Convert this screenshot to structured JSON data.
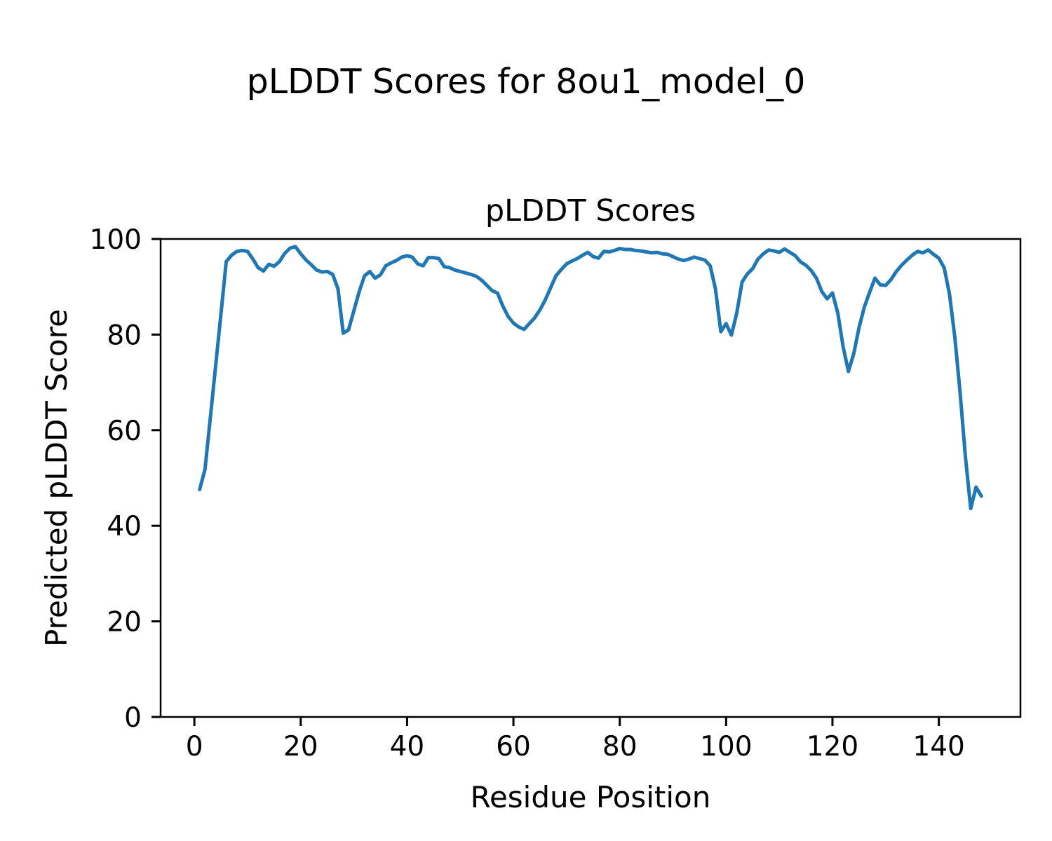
{
  "figure": {
    "suptitle": "pLDDT Scores for 8ou1_model_0",
    "background_color": "#ffffff",
    "text_color": "#000000"
  },
  "axes": {
    "title": "pLDDT Scores",
    "xlabel": "Residue Position",
    "ylabel": "Predicted pLDDT Score",
    "spine_color": "#000000"
  },
  "chart_data": {
    "type": "line",
    "title": "pLDDT Scores",
    "xlabel": "Residue Position",
    "ylabel": "Predicted pLDDT Score",
    "series_name": "pLDDT per residue",
    "line_color": "#1f77b4",
    "grid": false,
    "legend_position": "none",
    "x_start": 1,
    "x_step": 1,
    "n_points": 148,
    "xlim": [
      -6.35,
      155.35
    ],
    "ylim": [
      0,
      100
    ],
    "xtick_values": [
      0,
      20,
      40,
      60,
      80,
      100,
      120,
      140
    ],
    "ytick_values": [
      0,
      20,
      40,
      60,
      80,
      100
    ],
    "values": [
      47.6,
      51.8,
      62.6,
      73.5,
      84.4,
      95.3,
      96.6,
      97.4,
      97.6,
      97.4,
      95.8,
      94.0,
      93.3,
      94.7,
      94.3,
      95.3,
      97.0,
      98.1,
      98.4,
      96.9,
      95.6,
      94.6,
      93.5,
      93.1,
      93.2,
      92.6,
      89.6,
      80.3,
      81.0,
      85.0,
      89.0,
      92.3,
      93.2,
      91.8,
      92.5,
      94.4,
      95.0,
      95.5,
      96.2,
      96.5,
      96.2,
      94.8,
      94.4,
      96.1,
      96.1,
      95.9,
      94.2,
      94.0,
      93.5,
      93.2,
      92.9,
      92.6,
      92.2,
      91.4,
      90.3,
      89.2,
      88.7,
      86.0,
      83.8,
      82.4,
      81.6,
      81.1,
      82.3,
      83.5,
      85.2,
      87.3,
      89.8,
      92.3,
      93.6,
      94.8,
      95.4,
      95.9,
      96.6,
      97.2,
      96.3,
      96.0,
      97.4,
      97.3,
      97.6,
      98.0,
      97.8,
      97.8,
      97.6,
      97.5,
      97.3,
      97.1,
      97.2,
      96.9,
      96.8,
      96.3,
      95.8,
      95.5,
      95.8,
      96.2,
      95.9,
      95.6,
      94.4,
      89.5,
      80.6,
      82.3,
      79.9,
      84.5,
      91.0,
      92.7,
      93.8,
      95.8,
      96.9,
      97.7,
      97.5,
      97.2,
      97.9,
      97.2,
      96.5,
      95.2,
      94.5,
      93.4,
      91.8,
      89.0,
      87.5,
      88.7,
      84.5,
      77.5,
      72.3,
      76.0,
      81.5,
      85.8,
      88.9,
      91.8,
      90.4,
      90.3,
      91.5,
      93.2,
      94.5,
      95.6,
      96.6,
      97.4,
      97.1,
      97.7,
      96.8,
      96.0,
      94.0,
      88.5,
      79.5,
      68.0,
      54.5,
      43.6,
      48.1,
      46.2
    ]
  }
}
